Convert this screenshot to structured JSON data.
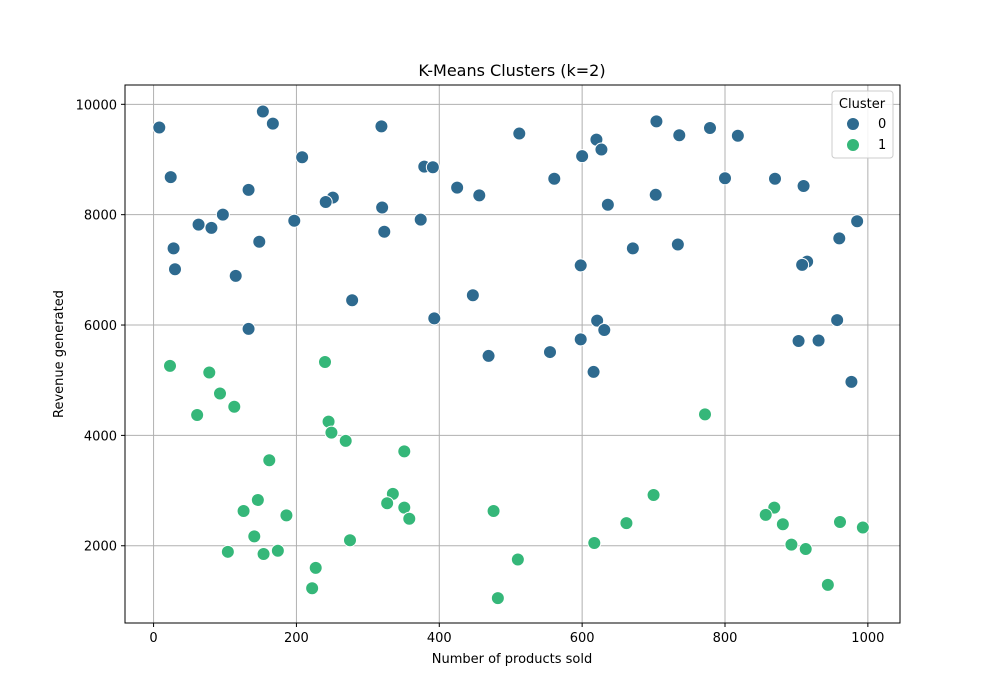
{
  "chart_data": {
    "type": "scatter",
    "title": "K-Means Clusters (k=2)",
    "xlabel": "Number of products sold",
    "ylabel": "Revenue generated",
    "xlim": [
      -40,
      1045
    ],
    "ylim": [
      600,
      10350
    ],
    "xticks": [
      0,
      200,
      400,
      600,
      800,
      1000
    ],
    "yticks": [
      2000,
      4000,
      6000,
      8000,
      10000
    ],
    "grid": true,
    "legend": {
      "title": "Cluster",
      "placement": "top-right"
    },
    "series": [
      {
        "name": "0",
        "color": "#2e6a8f",
        "points": [
          [
            8,
            9580
          ],
          [
            153,
            9870
          ],
          [
            167,
            9650
          ],
          [
            319,
            9600
          ],
          [
            512,
            9470
          ],
          [
            704,
            9690
          ],
          [
            736,
            9440
          ],
          [
            779,
            9570
          ],
          [
            818,
            9430
          ],
          [
            620,
            9360
          ],
          [
            627,
            9180
          ],
          [
            600,
            9060
          ],
          [
            208,
            9040
          ],
          [
            379,
            8870
          ],
          [
            391,
            8860
          ],
          [
            24,
            8680
          ],
          [
            425,
            8490
          ],
          [
            456,
            8350
          ],
          [
            561,
            8650
          ],
          [
            703,
            8360
          ],
          [
            800,
            8660
          ],
          [
            870,
            8650
          ],
          [
            910,
            8520
          ],
          [
            133,
            8450
          ],
          [
            251,
            8310
          ],
          [
            241,
            8230
          ],
          [
            320,
            8130
          ],
          [
            636,
            8180
          ],
          [
            97,
            8000
          ],
          [
            63,
            7820
          ],
          [
            81,
            7760
          ],
          [
            197,
            7890
          ],
          [
            374,
            7910
          ],
          [
            323,
            7690
          ],
          [
            985,
            7880
          ],
          [
            960,
            7570
          ],
          [
            148,
            7510
          ],
          [
            28,
            7390
          ],
          [
            671,
            7390
          ],
          [
            734,
            7460
          ],
          [
            915,
            7150
          ],
          [
            908,
            7090
          ],
          [
            598,
            7080
          ],
          [
            30,
            7010
          ],
          [
            115,
            6890
          ],
          [
            278,
            6450
          ],
          [
            447,
            6540
          ],
          [
            393,
            6120
          ],
          [
            621,
            6080
          ],
          [
            957,
            6090
          ],
          [
            133,
            5930
          ],
          [
            631,
            5910
          ],
          [
            598,
            5740
          ],
          [
            903,
            5710
          ],
          [
            931,
            5720
          ],
          [
            469,
            5440
          ],
          [
            555,
            5510
          ],
          [
            616,
            5150
          ],
          [
            977,
            4970
          ]
        ]
      },
      {
        "name": "1",
        "color": "#35b779",
        "points": [
          [
            23,
            5260
          ],
          [
            240,
            5330
          ],
          [
            78,
            5140
          ],
          [
            93,
            4760
          ],
          [
            61,
            4370
          ],
          [
            113,
            4520
          ],
          [
            245,
            4250
          ],
          [
            249,
            4050
          ],
          [
            269,
            3900
          ],
          [
            351,
            3710
          ],
          [
            162,
            3550
          ],
          [
            772,
            4380
          ],
          [
            146,
            2830
          ],
          [
            126,
            2630
          ],
          [
            335,
            2940
          ],
          [
            327,
            2770
          ],
          [
            351,
            2690
          ],
          [
            358,
            2490
          ],
          [
            186,
            2550
          ],
          [
            476,
            2630
          ],
          [
            700,
            2920
          ],
          [
            662,
            2410
          ],
          [
            869,
            2690
          ],
          [
            857,
            2560
          ],
          [
            881,
            2390
          ],
          [
            961,
            2430
          ],
          [
            993,
            2330
          ],
          [
            141,
            2170
          ],
          [
            275,
            2100
          ],
          [
            617,
            2050
          ],
          [
            104,
            1890
          ],
          [
            154,
            1850
          ],
          [
            174,
            1910
          ],
          [
            227,
            1600
          ],
          [
            222,
            1230
          ],
          [
            510,
            1750
          ],
          [
            893,
            2020
          ],
          [
            913,
            1940
          ],
          [
            944,
            1290
          ],
          [
            482,
            1050
          ]
        ]
      }
    ]
  }
}
